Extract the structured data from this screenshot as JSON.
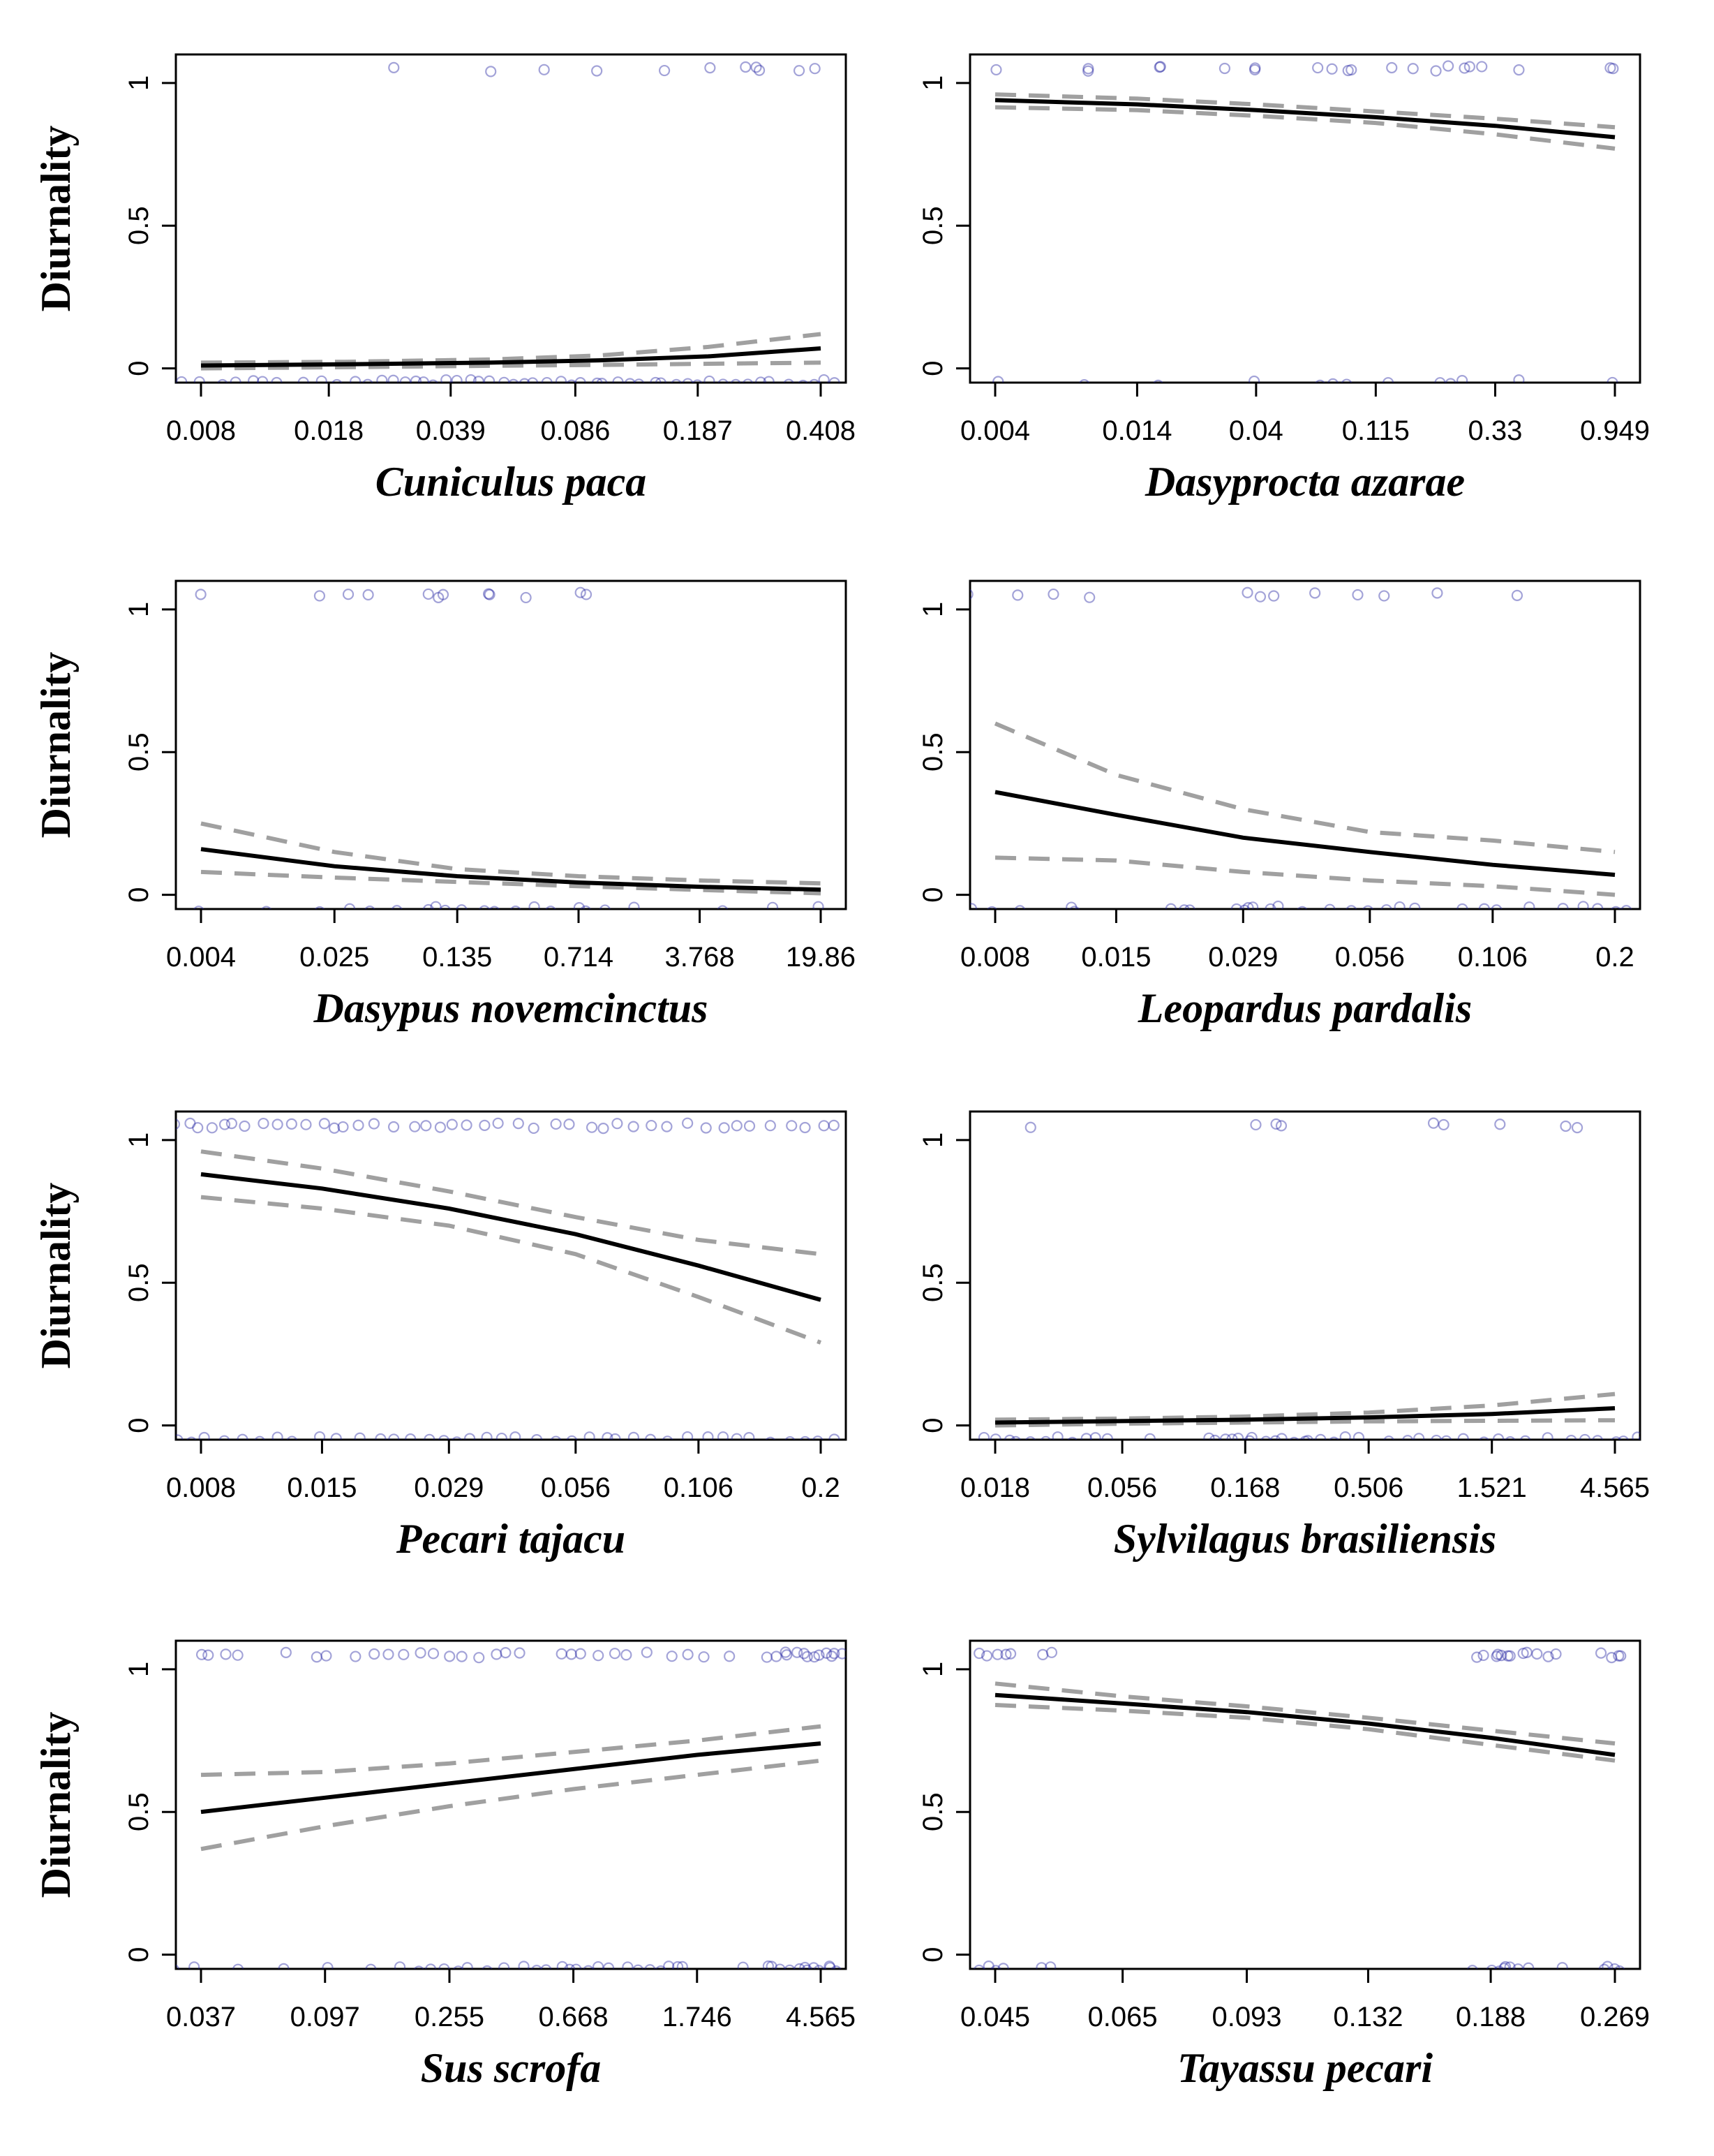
{
  "figure": {
    "ylabel": "Diurnality",
    "y_tick_labels": [
      "0",
      "0.5",
      "1"
    ],
    "colors": {
      "points": "#1a1a9e",
      "fit": "#000000",
      "ci": "#a0a0a0",
      "axis": "#000000",
      "background": "#ffffff"
    }
  },
  "chart_data": [
    {
      "type": "scatter",
      "panel": "top-left",
      "xlabel": "Cuniculus paca",
      "ylabel": "Diurnality",
      "x_scale": "log",
      "x_ticks": [
        "0.008",
        "0.018",
        "0.039",
        "0.086",
        "0.187",
        "0.408"
      ],
      "ylim": [
        -0.05,
        1.1
      ],
      "grid": false,
      "fit_line": {
        "x": [
          0.008,
          0.02,
          0.05,
          0.1,
          0.2,
          0.408
        ],
        "y": [
          0.01,
          0.014,
          0.02,
          0.028,
          0.042,
          0.07
        ]
      },
      "ci_lower": {
        "x": [
          0.008,
          0.02,
          0.05,
          0.1,
          0.2,
          0.408
        ],
        "y": [
          0.0,
          0.004,
          0.009,
          0.012,
          0.016,
          0.02
        ]
      },
      "ci_upper": {
        "x": [
          0.008,
          0.02,
          0.05,
          0.1,
          0.2,
          0.408
        ],
        "y": [
          0.02,
          0.023,
          0.031,
          0.045,
          0.075,
          0.12
        ]
      },
      "points": {
        "diurnal_x": [
          0.027,
          0.05,
          0.07,
          0.1,
          0.15,
          0.2,
          0.25,
          0.27,
          0.28,
          0.35,
          0.4
        ],
        "nocturnal_x": [
          0.007,
          0.008,
          0.009,
          0.01,
          0.011,
          0.012,
          0.013,
          0.015,
          0.017,
          0.019,
          0.021,
          0.023,
          0.025,
          0.027,
          0.029,
          0.031,
          0.033,
          0.035,
          0.038,
          0.041,
          0.044,
          0.047,
          0.05,
          0.054,
          0.058,
          0.062,
          0.067,
          0.072,
          0.078,
          0.084,
          0.09,
          0.097,
          0.104,
          0.112,
          0.12,
          0.13,
          0.14,
          0.15,
          0.162,
          0.175,
          0.19,
          0.205,
          0.22,
          0.24,
          0.26,
          0.28,
          0.3,
          0.33,
          0.36,
          0.39,
          0.42,
          0.45
        ]
      }
    },
    {
      "type": "scatter",
      "panel": "top-right",
      "xlabel": "Dasyprocta azarae",
      "ylabel": "",
      "x_scale": "log",
      "x_ticks": [
        "0.004",
        "0.014",
        "0.04",
        "0.115",
        "0.33",
        "0.949"
      ],
      "ylim": [
        -0.05,
        1.1
      ],
      "grid": false,
      "fit_line": {
        "x": [
          0.004,
          0.014,
          0.04,
          0.115,
          0.33,
          0.949
        ],
        "y": [
          0.94,
          0.925,
          0.905,
          0.88,
          0.85,
          0.81
        ]
      },
      "ci_lower": {
        "x": [
          0.004,
          0.014,
          0.04,
          0.115,
          0.33,
          0.949
        ],
        "y": [
          0.915,
          0.905,
          0.885,
          0.86,
          0.82,
          0.77
        ]
      },
      "ci_upper": {
        "x": [
          0.004,
          0.014,
          0.04,
          0.115,
          0.33,
          0.949
        ],
        "y": [
          0.96,
          0.945,
          0.925,
          0.9,
          0.875,
          0.845
        ]
      },
      "points": {
        "diurnal_x": [
          0.004,
          0.009,
          0.009,
          0.017,
          0.017,
          0.03,
          0.04,
          0.04,
          0.07,
          0.08,
          0.09,
          0.09,
          0.13,
          0.16,
          0.2,
          0.22,
          0.25,
          0.27,
          0.3,
          0.4,
          0.9,
          0.95
        ],
        "nocturnal_x": [
          0.004,
          0.009,
          0.017,
          0.04,
          0.07,
          0.08,
          0.09,
          0.13,
          0.2,
          0.22,
          0.25,
          0.4,
          0.95
        ]
      }
    },
    {
      "type": "scatter",
      "panel": "second-row-left",
      "xlabel": "Dasypus novemcinctus",
      "ylabel": "Diurnality",
      "x_scale": "log",
      "x_ticks": [
        "0.004",
        "0.025",
        "0.135",
        "0.714",
        "3.768",
        "19.86"
      ],
      "ylim": [
        -0.05,
        1.1
      ],
      "grid": false,
      "fit_line": {
        "x": [
          0.004,
          0.025,
          0.135,
          0.714,
          3.768,
          19.86
        ],
        "y": [
          0.16,
          0.1,
          0.065,
          0.043,
          0.028,
          0.018
        ]
      },
      "ci_lower": {
        "x": [
          0.004,
          0.025,
          0.135,
          0.714,
          3.768,
          19.86
        ],
        "y": [
          0.08,
          0.06,
          0.045,
          0.03,
          0.017,
          0.005
        ]
      },
      "ci_upper": {
        "x": [
          0.004,
          0.025,
          0.135,
          0.714,
          3.768,
          19.86
        ],
        "y": [
          0.25,
          0.15,
          0.09,
          0.065,
          0.05,
          0.04
        ]
      },
      "points": {
        "diurnal_x": [
          0.004,
          0.02,
          0.03,
          0.04,
          0.09,
          0.1,
          0.11,
          0.2,
          0.22,
          0.35,
          0.7,
          0.8
        ],
        "nocturnal_x": [
          0.004,
          0.01,
          0.02,
          0.03,
          0.04,
          0.06,
          0.09,
          0.1,
          0.11,
          0.15,
          0.2,
          0.22,
          0.3,
          0.4,
          0.5,
          0.7,
          0.8,
          1.0,
          1.5,
          5.0,
          10.0,
          19.86
        ]
      }
    },
    {
      "type": "scatter",
      "panel": "second-row-right",
      "xlabel": "Leopardus pardalis",
      "ylabel": "",
      "x_scale": "log",
      "x_ticks": [
        "0.008",
        "0.015",
        "0.029",
        "0.056",
        "0.106",
        "0.2"
      ],
      "ylim": [
        -0.05,
        1.1
      ],
      "grid": false,
      "fit_line": {
        "x": [
          0.008,
          0.015,
          0.029,
          0.056,
          0.106,
          0.2
        ],
        "y": [
          0.36,
          0.28,
          0.2,
          0.15,
          0.105,
          0.07
        ]
      },
      "ci_lower": {
        "x": [
          0.008,
          0.015,
          0.029,
          0.056,
          0.106,
          0.2
        ],
        "y": [
          0.13,
          0.12,
          0.08,
          0.05,
          0.03,
          0.0
        ]
      },
      "ci_upper": {
        "x": [
          0.008,
          0.015,
          0.029,
          0.056,
          0.106,
          0.2
        ],
        "y": [
          0.6,
          0.42,
          0.3,
          0.22,
          0.19,
          0.15
        ]
      },
      "points": {
        "diurnal_x": [
          0.007,
          0.009,
          0.011,
          0.013,
          0.03,
          0.032,
          0.034,
          0.042,
          0.052,
          0.06,
          0.08,
          0.12
        ],
        "nocturnal_x": [
          0.007,
          0.008,
          0.009,
          0.012,
          0.012,
          0.02,
          0.021,
          0.022,
          0.028,
          0.029,
          0.03,
          0.031,
          0.033,
          0.035,
          0.04,
          0.045,
          0.05,
          0.055,
          0.06,
          0.065,
          0.07,
          0.09,
          0.1,
          0.11,
          0.13,
          0.15,
          0.17,
          0.18,
          0.2,
          0.21
        ]
      }
    },
    {
      "type": "scatter",
      "panel": "third-row-left",
      "xlabel": "Pecari tajacu",
      "ylabel": "Diurnality",
      "x_scale": "log",
      "x_ticks": [
        "0.008",
        "0.015",
        "0.029",
        "0.056",
        "0.106",
        "0.2"
      ],
      "ylim": [
        -0.05,
        1.1
      ],
      "grid": false,
      "fit_line": {
        "x": [
          0.008,
          0.015,
          0.029,
          0.056,
          0.106,
          0.2
        ],
        "y": [
          0.88,
          0.83,
          0.76,
          0.67,
          0.56,
          0.44
        ]
      },
      "ci_lower": {
        "x": [
          0.008,
          0.015,
          0.029,
          0.056,
          0.106,
          0.2
        ],
        "y": [
          0.8,
          0.76,
          0.7,
          0.6,
          0.45,
          0.29
        ]
      },
      "ci_upper": {
        "x": [
          0.008,
          0.015,
          0.029,
          0.056,
          0.106,
          0.2
        ],
        "y": [
          0.96,
          0.9,
          0.82,
          0.73,
          0.65,
          0.6
        ]
      },
      "points": {
        "diurnal_x": [
          0.007,
          0.0075,
          0.008,
          0.0085,
          0.009,
          0.0095,
          0.01,
          0.011,
          0.012,
          0.013,
          0.014,
          0.015,
          0.016,
          0.017,
          0.018,
          0.02,
          0.022,
          0.024,
          0.026,
          0.028,
          0.03,
          0.032,
          0.035,
          0.038,
          0.041,
          0.045,
          0.05,
          0.055,
          0.06,
          0.065,
          0.07,
          0.076,
          0.083,
          0.09,
          0.1,
          0.11,
          0.12,
          0.13,
          0.14,
          0.155,
          0.17,
          0.185,
          0.2,
          0.215
        ],
        "nocturnal_x": [
          0.007,
          0.0075,
          0.008,
          0.009,
          0.01,
          0.011,
          0.012,
          0.013,
          0.015,
          0.016,
          0.018,
          0.02,
          0.022,
          0.024,
          0.026,
          0.028,
          0.03,
          0.032,
          0.035,
          0.038,
          0.041,
          0.045,
          0.05,
          0.055,
          0.06,
          0.065,
          0.07,
          0.076,
          0.083,
          0.09,
          0.1,
          0.11,
          0.12,
          0.13,
          0.14,
          0.155,
          0.17,
          0.185,
          0.2,
          0.215
        ]
      }
    },
    {
      "type": "scatter",
      "panel": "third-row-right",
      "xlabel": "Sylvilagus brasiliensis",
      "ylabel": "",
      "x_scale": "log",
      "x_ticks": [
        "0.018",
        "0.056",
        "0.168",
        "0.506",
        "1.521",
        "4.565"
      ],
      "ylim": [
        -0.05,
        1.1
      ],
      "grid": false,
      "fit_line": {
        "x": [
          0.018,
          0.056,
          0.168,
          0.506,
          1.521,
          4.565
        ],
        "y": [
          0.01,
          0.015,
          0.02,
          0.028,
          0.04,
          0.06
        ]
      },
      "ci_lower": {
        "x": [
          0.018,
          0.056,
          0.168,
          0.506,
          1.521,
          4.565
        ],
        "y": [
          0.0,
          0.006,
          0.01,
          0.014,
          0.016,
          0.018
        ]
      },
      "ci_upper": {
        "x": [
          0.018,
          0.056,
          0.168,
          0.506,
          1.521,
          4.565
        ],
        "y": [
          0.02,
          0.024,
          0.031,
          0.045,
          0.07,
          0.11
        ]
      },
      "points": {
        "diurnal_x": [
          0.025,
          0.18,
          0.22,
          0.23,
          0.9,
          1.0,
          1.6,
          3.0,
          3.2,
          6.0
        ],
        "nocturnal_x": [
          0.012,
          0.014,
          0.016,
          0.018,
          0.02,
          0.022,
          0.025,
          0.028,
          0.031,
          0.035,
          0.04,
          0.045,
          0.05,
          0.07,
          0.12,
          0.13,
          0.14,
          0.15,
          0.16,
          0.17,
          0.18,
          0.2,
          0.22,
          0.24,
          0.26,
          0.28,
          0.3,
          0.33,
          0.36,
          0.4,
          0.45,
          0.6,
          0.7,
          0.8,
          0.9,
          1.0,
          1.2,
          1.4,
          1.6,
          1.8,
          2.0,
          2.5,
          3.0,
          3.5,
          4.0,
          4.5,
          5.0,
          5.5,
          6.0
        ]
      }
    },
    {
      "type": "scatter",
      "panel": "bottom-left",
      "xlabel": "Sus scrofa",
      "ylabel": "Diurnality",
      "x_scale": "log",
      "x_ticks": [
        "0.037",
        "0.097",
        "0.255",
        "0.668",
        "1.746",
        "4.565"
      ],
      "ylim": [
        -0.05,
        1.1
      ],
      "grid": false,
      "fit_line": {
        "x": [
          0.037,
          0.097,
          0.255,
          0.668,
          1.746,
          4.565
        ],
        "y": [
          0.5,
          0.55,
          0.6,
          0.65,
          0.7,
          0.74
        ]
      },
      "ci_lower": {
        "x": [
          0.037,
          0.097,
          0.255,
          0.668,
          1.746,
          4.565
        ],
        "y": [
          0.37,
          0.45,
          0.52,
          0.58,
          0.63,
          0.68
        ]
      },
      "ci_upper": {
        "x": [
          0.037,
          0.097,
          0.255,
          0.668,
          1.746,
          4.565
        ],
        "y": [
          0.63,
          0.64,
          0.67,
          0.71,
          0.75,
          0.8
        ]
      },
      "points": {
        "diurnal_x": [
          0.037,
          0.04,
          0.045,
          0.05,
          0.07,
          0.09,
          0.1,
          0.12,
          0.14,
          0.16,
          0.18,
          0.2,
          0.22,
          0.25,
          0.28,
          0.32,
          0.36,
          0.4,
          0.45,
          0.6,
          0.65,
          0.7,
          0.8,
          0.9,
          1.0,
          1.2,
          1.4,
          1.6,
          1.8,
          2.2,
          3.0,
          3.2,
          3.4,
          3.6,
          3.8,
          4.0,
          4.2,
          4.4,
          4.6,
          4.8,
          5.0,
          5.2,
          5.4
        ],
        "nocturnal_x": [
          0.03,
          0.035,
          0.05,
          0.07,
          0.1,
          0.14,
          0.17,
          0.2,
          0.22,
          0.25,
          0.28,
          0.3,
          0.35,
          0.4,
          0.45,
          0.5,
          0.55,
          0.6,
          0.65,
          0.7,
          0.75,
          0.8,
          0.9,
          1.0,
          1.1,
          1.2,
          1.3,
          1.4,
          1.5,
          1.6,
          2.5,
          3.0,
          3.2,
          3.4,
          3.6,
          3.8,
          4.0,
          4.2,
          4.4,
          4.6,
          4.8,
          5.0,
          5.2
        ]
      }
    },
    {
      "type": "scatter",
      "panel": "bottom-right",
      "xlabel": "Tayassu pecari",
      "ylabel": "",
      "x_scale": "log",
      "x_ticks": [
        "0.045",
        "0.065",
        "0.093",
        "0.132",
        "0.188",
        "0.269"
      ],
      "ylim": [
        -0.05,
        1.1
      ],
      "grid": false,
      "fit_line": {
        "x": [
          0.045,
          0.065,
          0.093,
          0.132,
          0.188,
          0.269
        ],
        "y": [
          0.91,
          0.88,
          0.85,
          0.81,
          0.76,
          0.7
        ]
      },
      "ci_lower": {
        "x": [
          0.045,
          0.065,
          0.093,
          0.132,
          0.188,
          0.269
        ],
        "y": [
          0.875,
          0.855,
          0.83,
          0.79,
          0.735,
          0.68
        ]
      },
      "ci_upper": {
        "x": [
          0.045,
          0.065,
          0.093,
          0.132,
          0.188,
          0.269
        ],
        "y": [
          0.95,
          0.905,
          0.87,
          0.83,
          0.785,
          0.74
        ]
      },
      "points": {
        "diurnal_x": [
          0.043,
          0.044,
          0.045,
          0.046,
          0.047,
          0.052,
          0.053,
          0.18,
          0.185,
          0.19,
          0.192,
          0.195,
          0.198,
          0.2,
          0.205,
          0.21,
          0.215,
          0.22,
          0.225,
          0.26,
          0.265,
          0.27,
          0.275
        ],
        "nocturnal_x": [
          0.043,
          0.044,
          0.045,
          0.046,
          0.051,
          0.053,
          0.18,
          0.19,
          0.192,
          0.195,
          0.198,
          0.2,
          0.205,
          0.21,
          0.23,
          0.26,
          0.265,
          0.27,
          0.275
        ]
      }
    }
  ]
}
